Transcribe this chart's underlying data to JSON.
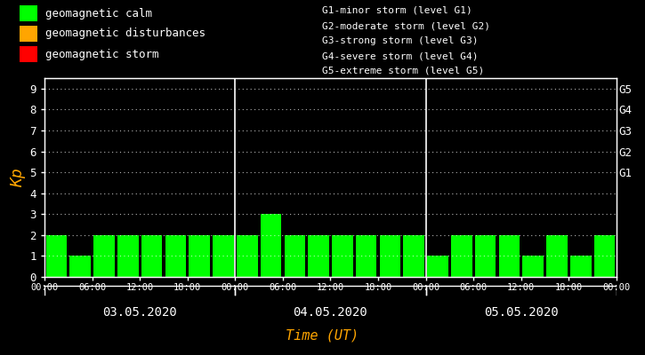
{
  "background_color": "#000000",
  "bar_color": "#00ff00",
  "text_color": "#ffffff",
  "kp_label_color": "#ffa500",
  "days": [
    "03.05.2020",
    "04.05.2020",
    "05.05.2020"
  ],
  "kp_values": [
    2,
    1,
    2,
    2,
    2,
    2,
    2,
    2,
    2,
    3,
    2,
    2,
    2,
    2,
    2,
    2,
    1,
    2,
    2,
    2,
    1,
    2,
    1,
    2
  ],
  "ylim": [
    0,
    9.5
  ],
  "yticks": [
    0,
    1,
    2,
    3,
    4,
    5,
    6,
    7,
    8,
    9
  ],
  "xlabel": "Time (UT)",
  "ylabel": "Kp",
  "g_labels": [
    "G5",
    "G4",
    "G3",
    "G2",
    "G1"
  ],
  "g_levels": [
    9,
    8,
    7,
    6,
    5
  ],
  "legend_calm": "geomagnetic calm",
  "legend_dist": "geomagnetic disturbances",
  "legend_storm": "geomagnetic storm",
  "legend_calm_color": "#00ff00",
  "legend_dist_color": "#ffa500",
  "legend_storm_color": "#ff0000",
  "g_text_lines": [
    "G1-minor storm (level G1)",
    "G2-moderate storm (level G2)",
    "G3-strong storm (level G3)",
    "G4-severe storm (level G4)",
    "G5-extreme storm (level G5)"
  ],
  "time_labels": [
    "00:00",
    "06:00",
    "12:00",
    "18:00",
    "00:00",
    "06:00",
    "12:00",
    "18:00",
    "00:00",
    "06:00",
    "12:00",
    "18:00",
    "00:00"
  ],
  "separator_color": "#ffffff",
  "figsize": [
    7.25,
    4.0
  ],
  "dpi": 100
}
